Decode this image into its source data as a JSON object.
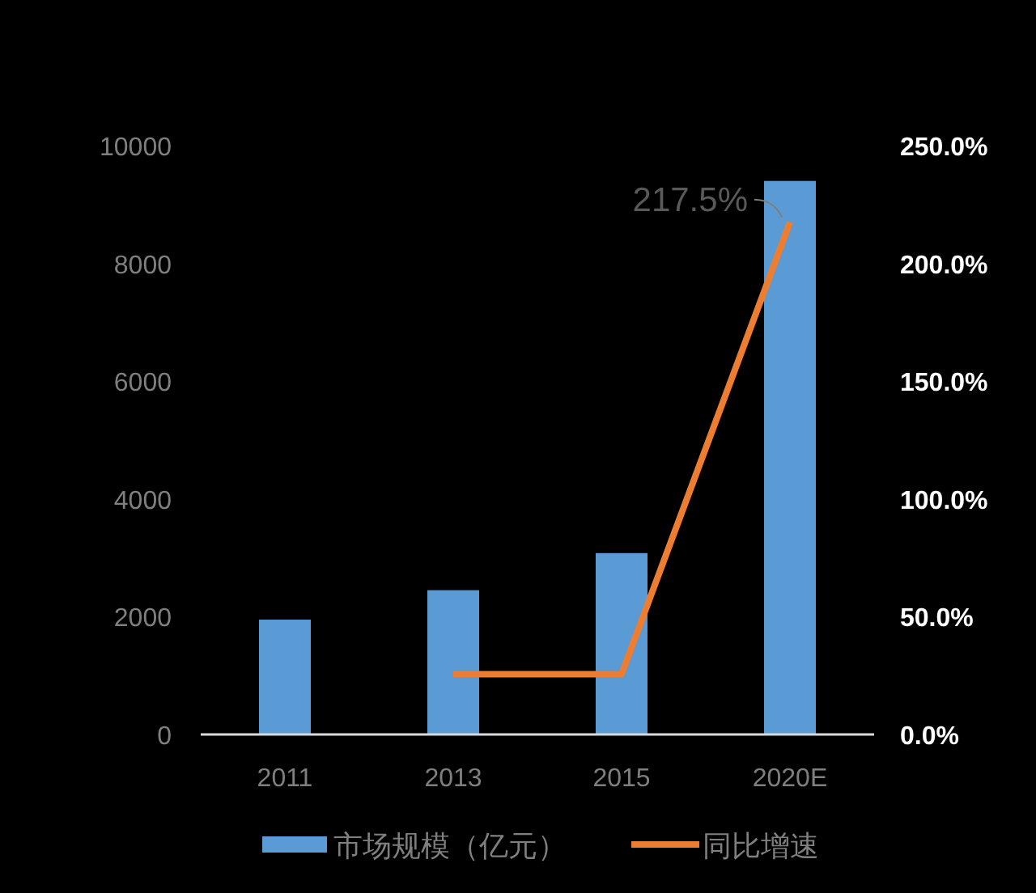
{
  "chart_data": {
    "type": "bar",
    "categories": [
      "2011",
      "2013",
      "2015",
      "2020E"
    ],
    "series": [
      {
        "name": "市场规模（亿元）",
        "color": "#5b9bd5",
        "values": [
          1950,
          2450,
          3080,
          9400
        ]
      },
      {
        "name": "同比增速",
        "type": "line",
        "axis": "y2",
        "color": "#ed7d31",
        "values": [
          null,
          25.6,
          25.6,
          217.5
        ],
        "value_labels": [
          null,
          null,
          null,
          "217.5%"
        ]
      }
    ],
    "ylim": [
      0,
      10000
    ],
    "yticks": [
      0,
      2000,
      4000,
      6000,
      8000,
      10000
    ],
    "y2lim": [
      0,
      250
    ],
    "y2ticks": [
      {
        "value": 0,
        "label": "0.0%"
      },
      {
        "value": 50,
        "label": "50.0%"
      },
      {
        "value": 100,
        "label": "100.0%"
      },
      {
        "value": 150,
        "label": "150.0%"
      },
      {
        "value": 200,
        "label": "200.0%"
      },
      {
        "value": 250,
        "label": "250.0%"
      }
    ],
    "legend": "bottom",
    "grid": false,
    "line_style": "solid"
  }
}
